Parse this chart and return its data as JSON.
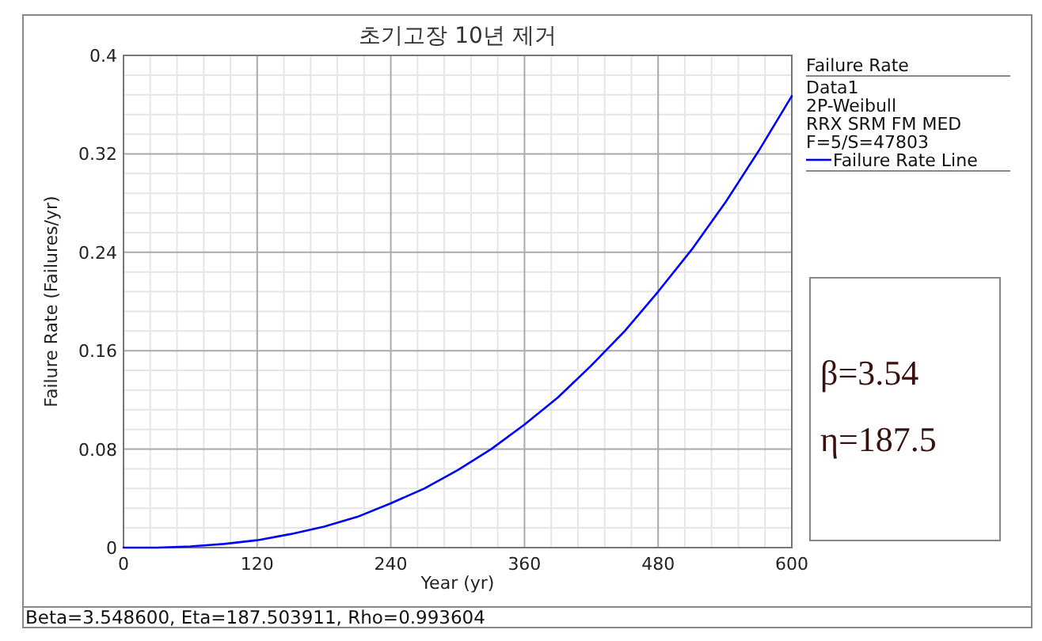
{
  "chart_data": {
    "type": "line",
    "title": "초기고장 10년 제거",
    "xlabel": "Year (yr)",
    "ylabel": "Failure Rate (Failures/yr)",
    "legend_title": "Failure Rate",
    "legend": "right",
    "x": [
      0,
      30,
      60,
      90,
      120,
      150,
      180,
      210,
      240,
      270,
      300,
      330,
      360,
      390,
      420,
      450,
      480,
      510,
      540,
      570,
      600
    ],
    "series": [
      {
        "name": "Failure Rate Line",
        "color": "#0000ff",
        "values": [
          0,
          0,
          0.001,
          0.003,
          0.006,
          0.011,
          0.017,
          0.025,
          0.036,
          0.048,
          0.063,
          0.08,
          0.1,
          0.122,
          0.148,
          0.176,
          0.208,
          0.242,
          0.28,
          0.322,
          0.367
        ]
      }
    ],
    "xlim": [
      0,
      600
    ],
    "xticks": [
      0,
      120,
      240,
      360,
      480,
      600
    ],
    "ylim": [
      0,
      0.4
    ],
    "yticks": [
      0,
      0.08,
      0.16,
      0.24,
      0.32,
      0.4
    ],
    "grid": true,
    "marker": "none",
    "line_style": "solid",
    "annotations": [
      "Data1",
      "2P-Weibull",
      "RRX SRM FM MED",
      "F=5/S=47803",
      "β=3.54",
      "η=187.5",
      "Beta=3.548600, Eta=187.503911, Rho=0.993604"
    ]
  }
}
